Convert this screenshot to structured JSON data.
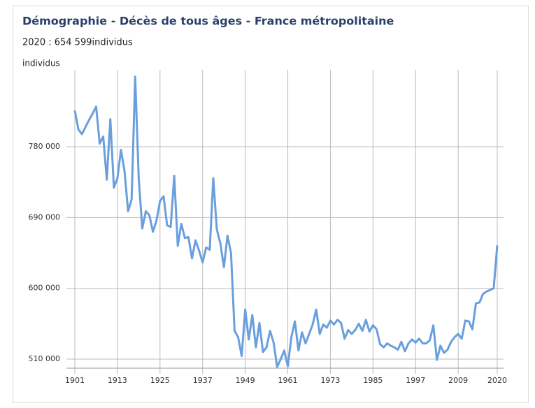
{
  "chart_data": {
    "type": "line",
    "title": "Démographie - Décès de tous âges - France métropolitaine",
    "subtitle": "2020 : 654 599individus",
    "y_label": "individus",
    "x": [
      1901,
      1902,
      1903,
      1904,
      1905,
      1906,
      1907,
      1908,
      1909,
      1910,
      1911,
      1912,
      1913,
      1914,
      1915,
      1916,
      1917,
      1918,
      1919,
      1920,
      1921,
      1922,
      1923,
      1924,
      1925,
      1926,
      1927,
      1928,
      1929,
      1930,
      1931,
      1932,
      1933,
      1934,
      1935,
      1936,
      1937,
      1938,
      1939,
      1940,
      1941,
      1942,
      1943,
      1944,
      1945,
      1946,
      1947,
      1948,
      1949,
      1950,
      1951,
      1952,
      1953,
      1954,
      1955,
      1956,
      1957,
      1958,
      1959,
      1960,
      1961,
      1962,
      1963,
      1964,
      1965,
      1966,
      1967,
      1968,
      1969,
      1970,
      1971,
      1972,
      1973,
      1974,
      1975,
      1976,
      1977,
      1978,
      1979,
      1980,
      1981,
      1982,
      1983,
      1984,
      1985,
      1986,
      1987,
      1988,
      1989,
      1990,
      1991,
      1992,
      1993,
      1994,
      1995,
      1996,
      1997,
      1998,
      1999,
      2000,
      2001,
      2002,
      2003,
      2004,
      2005,
      2006,
      2007,
      2008,
      2009,
      2010,
      2011,
      2012,
      2013,
      2014,
      2015,
      2016,
      2017,
      2018,
      2019,
      2020
    ],
    "series": [
      {
        "name": "individus",
        "color": "#6a9fdd",
        "values": [
          826000,
          802000,
          796000,
          805000,
          814000,
          822000,
          831000,
          784000,
          793000,
          738000,
          815000,
          728000,
          740000,
          776000,
          749000,
          698000,
          713000,
          869000,
          740000,
          676000,
          698000,
          693000,
          672000,
          686000,
          711000,
          717000,
          680000,
          678000,
          743000,
          654000,
          682000,
          664000,
          665000,
          638000,
          661000,
          648000,
          633000,
          652000,
          649000,
          740000,
          675000,
          657000,
          627000,
          667000,
          645000,
          546000,
          538000,
          514000,
          573000,
          535000,
          566000,
          525000,
          556000,
          519000,
          525000,
          546000,
          531000,
          500000,
          510000,
          521000,
          501000,
          538000,
          558000,
          521000,
          544000,
          530000,
          542000,
          554000,
          573000,
          542000,
          554000,
          550000,
          559000,
          554000,
          560000,
          556000,
          536000,
          547000,
          542000,
          547000,
          555000,
          546000,
          560000,
          545000,
          553000,
          548000,
          529000,
          525000,
          530000,
          527000,
          525000,
          522000,
          532000,
          520000,
          530000,
          535000,
          531000,
          536000,
          530000,
          530000,
          534000,
          553000,
          509000,
          527000,
          518000,
          522000,
          532000,
          538000,
          542000,
          536000,
          559000,
          558000,
          548000,
          581000,
          582000,
          593000,
          596000,
          598000,
          600000,
          654599
        ]
      }
    ],
    "xlim": [
      1901,
      2020
    ],
    "xticks": [
      1901,
      1913,
      1925,
      1937,
      1949,
      1961,
      1973,
      1985,
      1997,
      2009,
      2020
    ],
    "ylim": [
      498500,
      877700
    ],
    "yticks": [
      {
        "value": 510000,
        "label": "510 000"
      },
      {
        "value": 600000,
        "label": "600 000"
      },
      {
        "value": 690000,
        "label": "690 000"
      },
      {
        "value": 780000,
        "label": "780 000"
      }
    ],
    "grid": true
  }
}
